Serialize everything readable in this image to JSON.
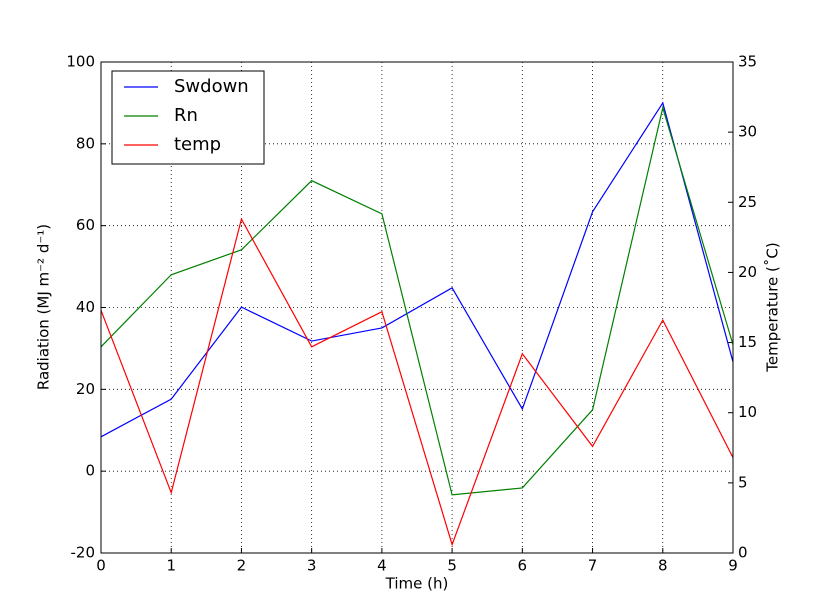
{
  "chart_data": {
    "type": "line",
    "xlabel": "Time (h)",
    "ylabel": "Radiation (MJ m⁻² d⁻¹)",
    "y2label": "Temperature (˚C)",
    "x": [
      0,
      1,
      2,
      3,
      4,
      5,
      6,
      7,
      8,
      9
    ],
    "series": [
      {
        "name": "Swdown",
        "color": "#0000ff",
        "values": [
          8.4,
          17.6,
          40.1,
          31.8,
          35,
          44.8,
          15.2,
          63.4,
          90,
          26.7
        ]
      },
      {
        "name": "Rn",
        "color": "#008000",
        "values": [
          30.4,
          48,
          54.1,
          71,
          62.9,
          -5.8,
          -4.1,
          15,
          88.8,
          30.9
        ]
      },
      {
        "name": "temp",
        "color": "#ff0000",
        "axis": "y2",
        "values": [
          17.3,
          4.3,
          23.8,
          14.7,
          17.2,
          0.6,
          14.2,
          7.6,
          16.6,
          6.8
        ]
      }
    ],
    "xlim": [
      0,
      9
    ],
    "xticks": [
      0,
      1,
      2,
      3,
      4,
      5,
      6,
      7,
      8,
      9
    ],
    "ylim": [
      -20,
      100
    ],
    "yticks": [
      -20,
      0,
      20,
      40,
      60,
      80,
      100
    ],
    "y2lim": [
      0,
      35
    ],
    "y2ticks": [
      0,
      5,
      10,
      15,
      20,
      25,
      30,
      35
    ],
    "grid": true,
    "legend": "upper left"
  }
}
